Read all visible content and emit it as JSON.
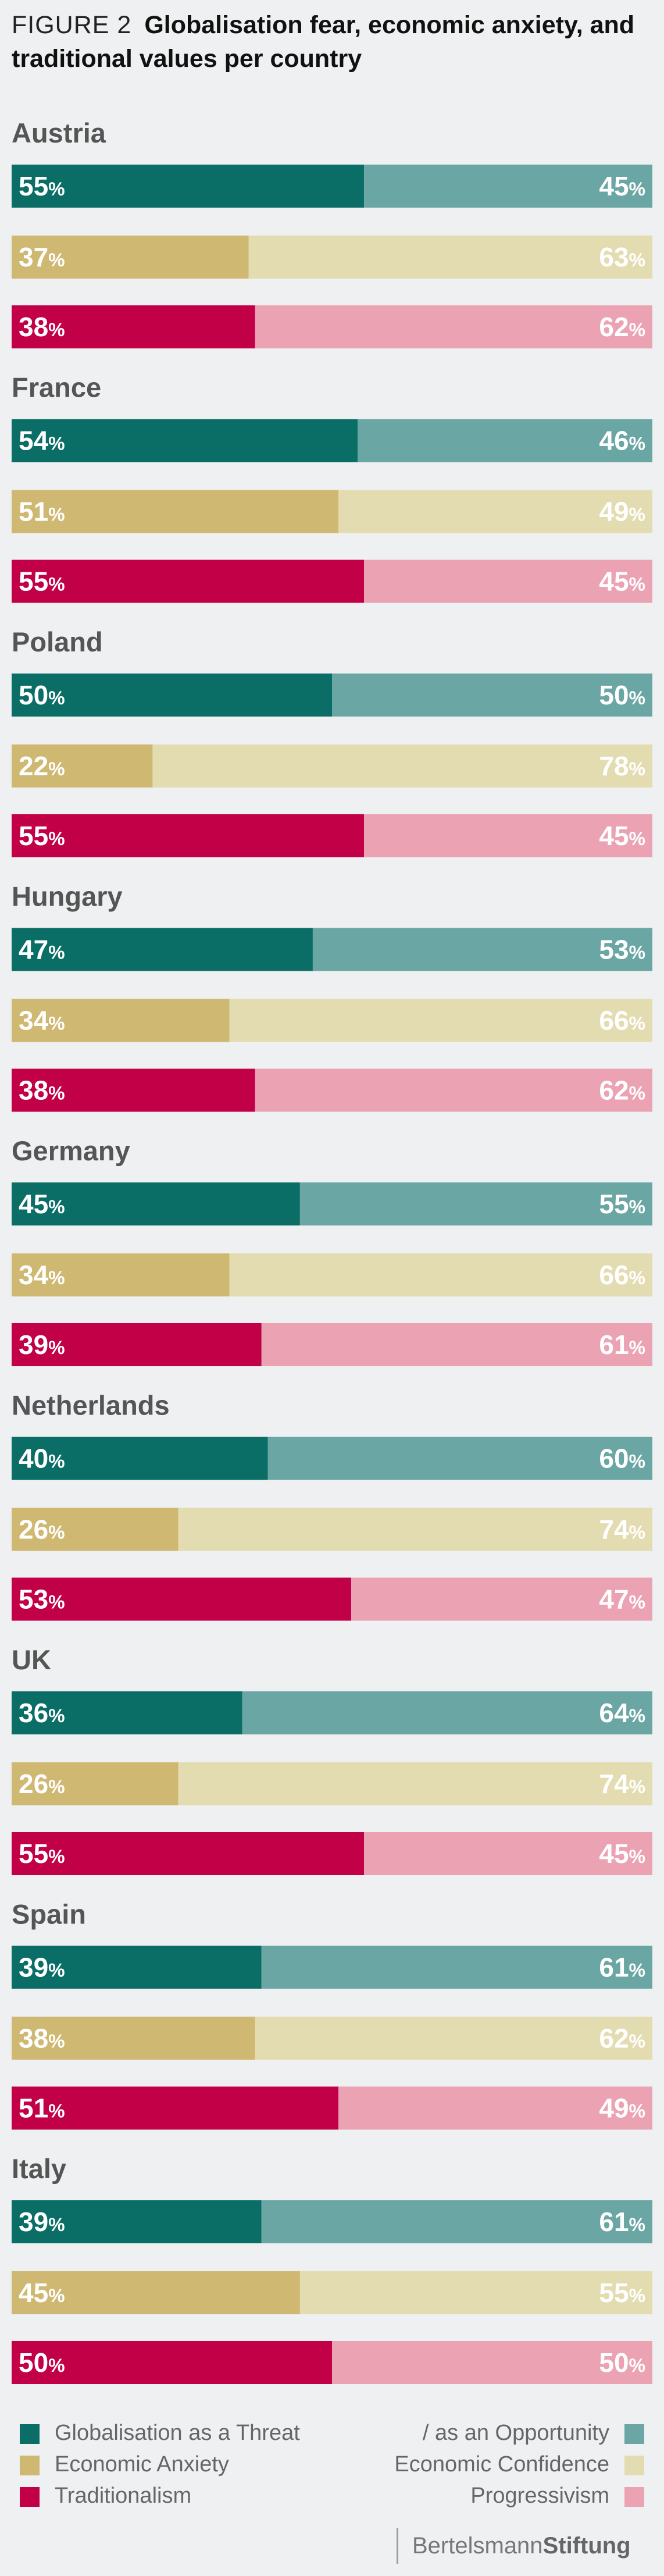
{
  "header": {
    "figure_label": "FIGURE 2",
    "title": "Globalisation fear, economic anxiety, and traditional values per country"
  },
  "colors": {
    "threat": "#0a6e66",
    "opportunity": "#6aa6a3",
    "anxiety": "#cfb871",
    "confidence": "#e4dcb1",
    "traditionalism": "#c20047",
    "progressivism": "#eba3b4"
  },
  "chart_data": {
    "type": "bar",
    "stacked": true,
    "orientation": "horizontal",
    "xlim": [
      0,
      100
    ],
    "unit": "%",
    "measures": [
      {
        "left": "Globalisation as a Threat",
        "right": "/ as an Opportunity"
      },
      {
        "left": "Economic Anxiety",
        "right": "Economic Confidence"
      },
      {
        "left": "Traditionalism",
        "right": "Progressivism"
      }
    ],
    "countries": [
      {
        "name": "Austria",
        "rows": [
          [
            55,
            45
          ],
          [
            37,
            63
          ],
          [
            38,
            62
          ]
        ]
      },
      {
        "name": "France",
        "rows": [
          [
            54,
            46
          ],
          [
            51,
            49
          ],
          [
            55,
            45
          ]
        ]
      },
      {
        "name": "Poland",
        "rows": [
          [
            50,
            50
          ],
          [
            22,
            78
          ],
          [
            55,
            45
          ]
        ]
      },
      {
        "name": "Hungary",
        "rows": [
          [
            47,
            53
          ],
          [
            34,
            66
          ],
          [
            38,
            62
          ]
        ]
      },
      {
        "name": "Germany",
        "rows": [
          [
            45,
            55
          ],
          [
            34,
            66
          ],
          [
            39,
            61
          ]
        ]
      },
      {
        "name": "Netherlands",
        "rows": [
          [
            40,
            60
          ],
          [
            26,
            74
          ],
          [
            53,
            47
          ]
        ]
      },
      {
        "name": "UK",
        "rows": [
          [
            36,
            64
          ],
          [
            26,
            74
          ],
          [
            55,
            45
          ]
        ]
      },
      {
        "name": "Spain",
        "rows": [
          [
            39,
            61
          ],
          [
            38,
            62
          ],
          [
            51,
            49
          ]
        ]
      },
      {
        "name": "Italy",
        "rows": [
          [
            39,
            61
          ],
          [
            45,
            55
          ],
          [
            50,
            50
          ]
        ]
      }
    ]
  },
  "legend": {
    "threat": "Globalisation as a Threat",
    "opportunity": "/ as an Opportunity",
    "anxiety": "Economic Anxiety",
    "confidence": "Economic Confidence",
    "traditionalism": "Traditionalism",
    "progressivism": "Progressivism"
  },
  "footer": {
    "brand_light": "Bertelsmann",
    "brand_bold": "Stiftung"
  }
}
